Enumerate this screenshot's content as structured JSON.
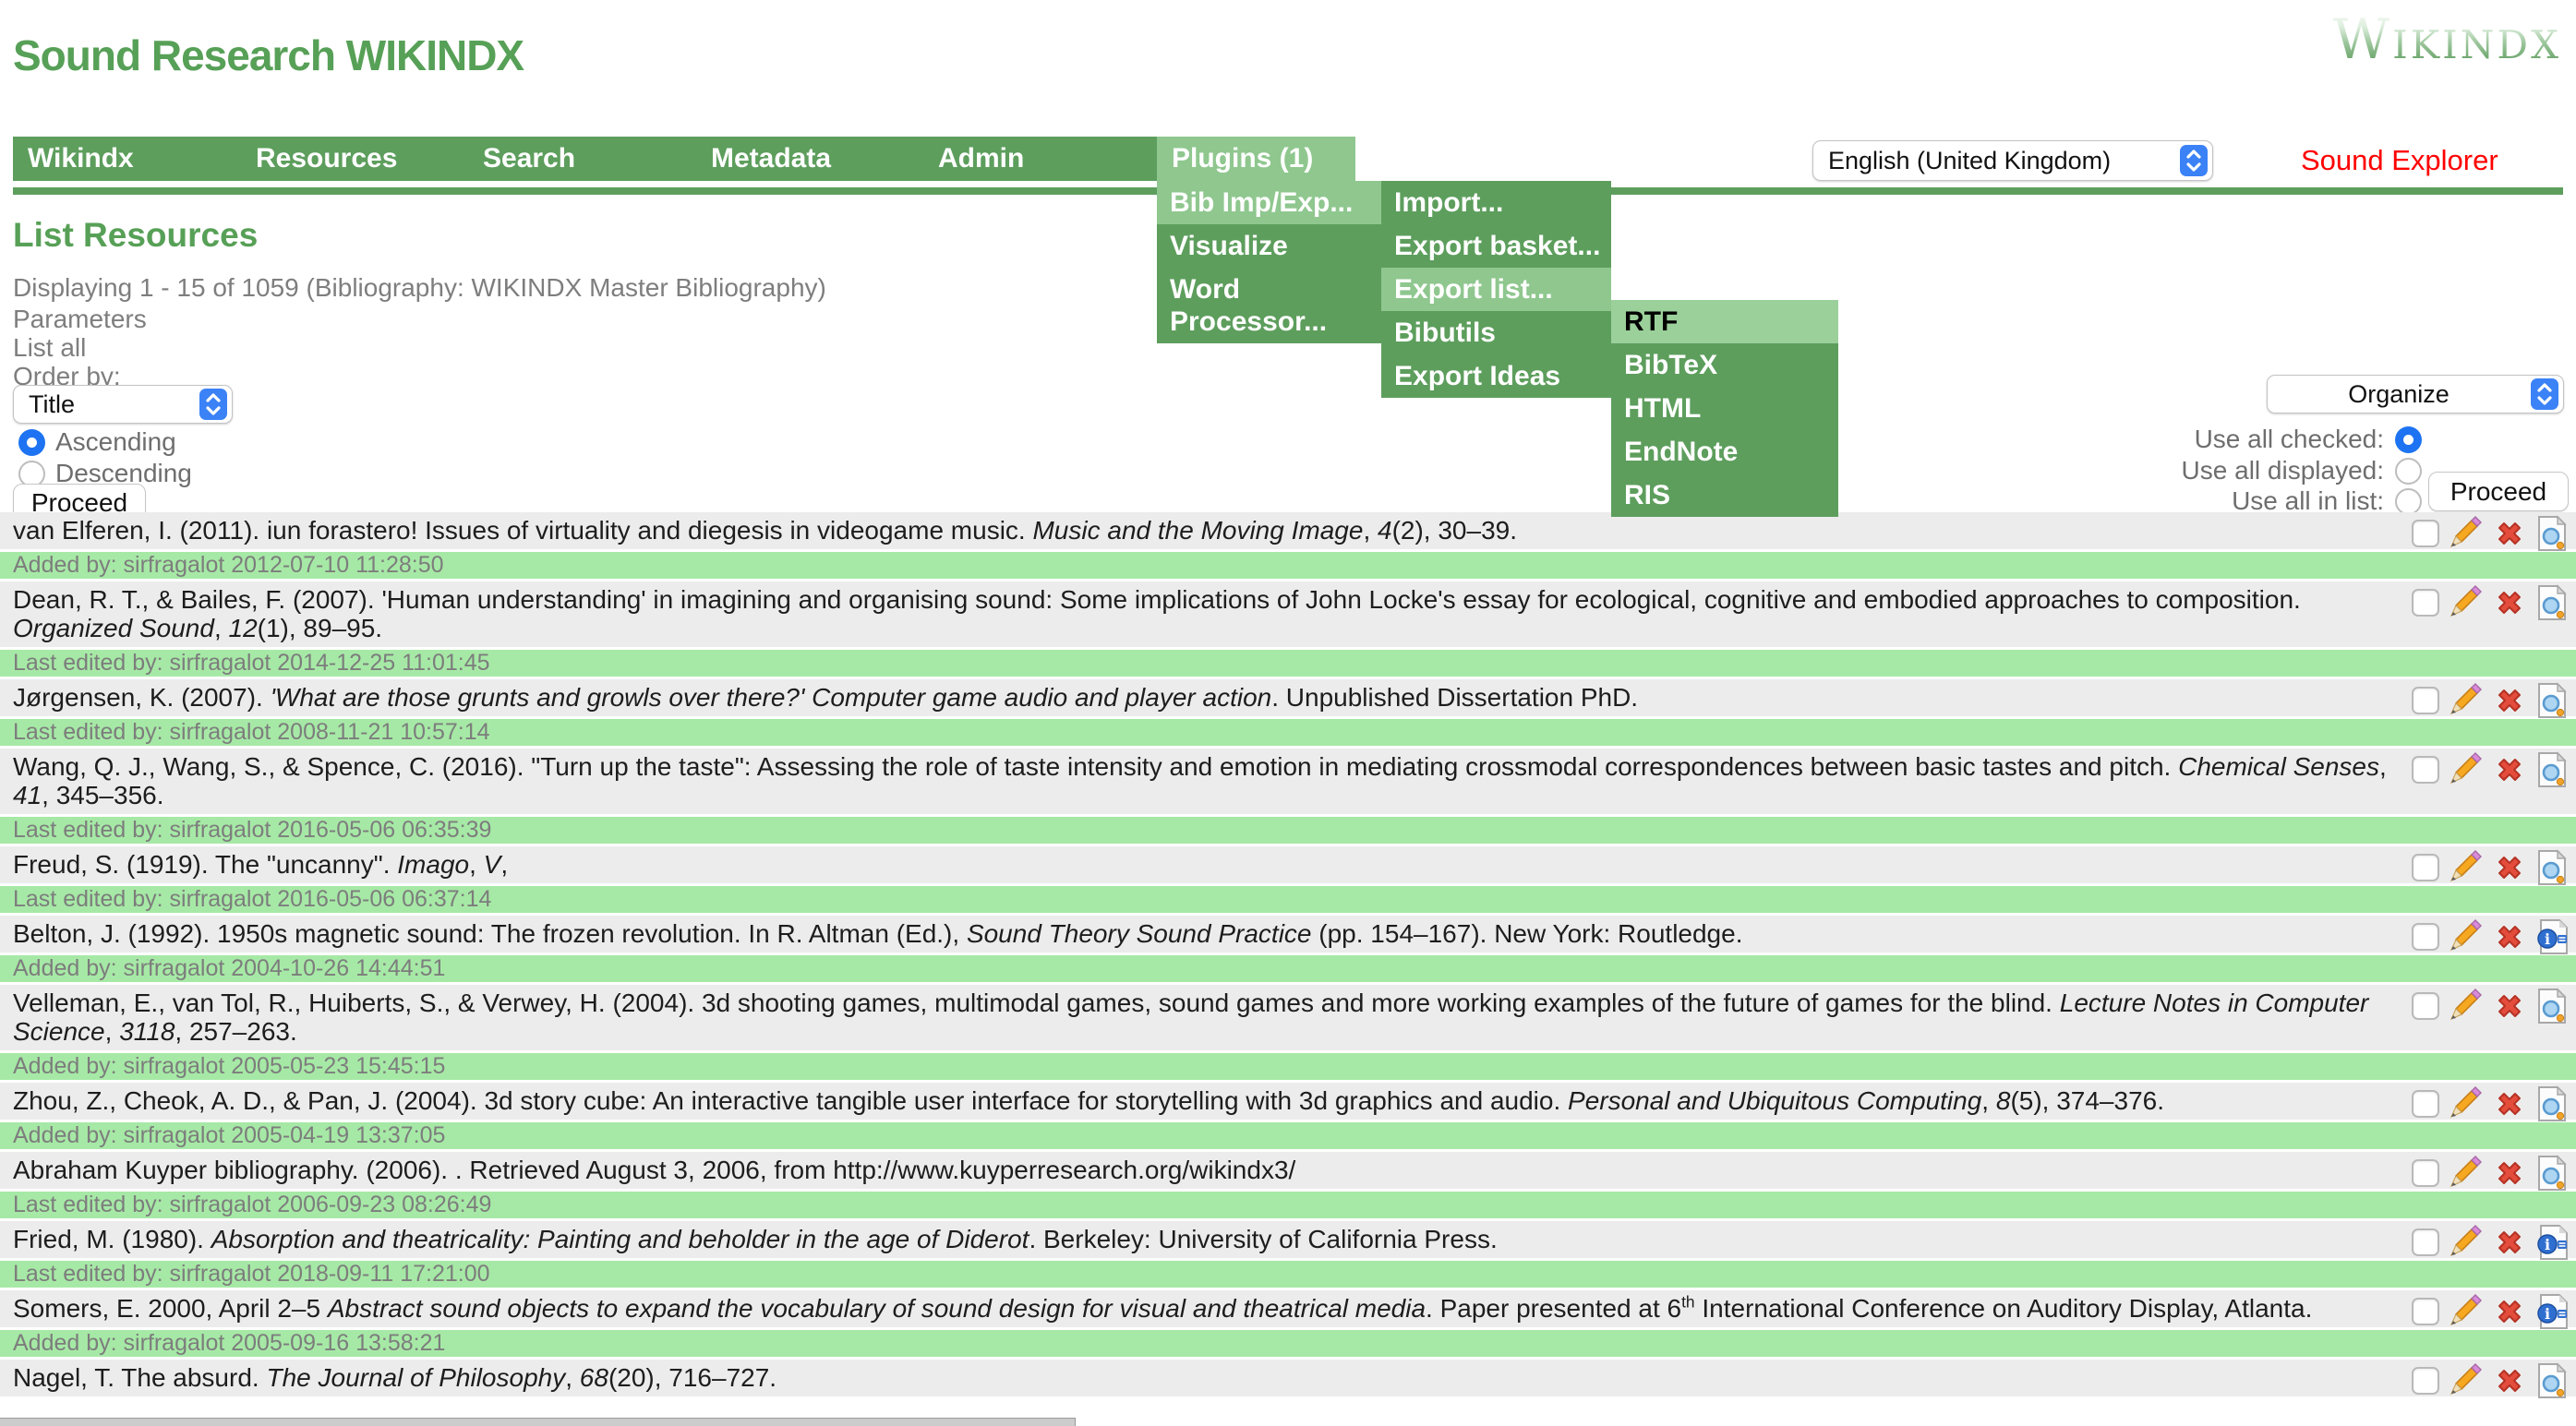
{
  "header": {
    "title": "Sound Research WIKINDX",
    "logo": "Wikindx",
    "language_select_value": "English (United Kingdom)",
    "explorer_label": "Sound Explorer",
    "accent_green": "#5d9e5d",
    "highlight_green": "#8fc78f",
    "bar_green": "#a6e9a6",
    "explorer_red": "#ff0000"
  },
  "nav": {
    "items": [
      {
        "label": "Wikindx",
        "active": false
      },
      {
        "label": "Resources",
        "active": false
      },
      {
        "label": "Search",
        "active": false
      },
      {
        "label": "Metadata",
        "active": false
      },
      {
        "label": "Admin",
        "active": false
      },
      {
        "label": "Plugins (1)",
        "active": true
      }
    ]
  },
  "menus": {
    "level1": [
      {
        "label": "Bib Imp/Exp...",
        "highlighted": true
      },
      {
        "label": "Visualize",
        "highlighted": false
      },
      {
        "label": "Word Processor...",
        "highlighted": false
      }
    ],
    "level2": [
      {
        "label": "Import...",
        "highlighted": false
      },
      {
        "label": "Export basket...",
        "highlighted": false
      },
      {
        "label": "Export list...",
        "highlighted": true
      },
      {
        "label": "Bibutils",
        "highlighted": false
      },
      {
        "label": "Export Ideas",
        "highlighted": false
      }
    ],
    "level3": [
      {
        "label": "RTF",
        "highlighted": true
      },
      {
        "label": "BibTeX",
        "highlighted": false
      },
      {
        "label": "HTML",
        "highlighted": false
      },
      {
        "label": "EndNote",
        "highlighted": false
      },
      {
        "label": "RIS",
        "highlighted": false
      }
    ]
  },
  "list_header": {
    "title": "List Resources",
    "displaying": "Displaying 1 - 15 of 1059 (Bibliography: WIKINDX Master Bibliography)",
    "parameters_label": "Parameters",
    "list_all_label": "List all",
    "order_by_label": "Order by:",
    "order_select_value": "Title",
    "ascending_label": "Ascending",
    "descending_label": "Descending",
    "ascending_checked": true,
    "proceed_label": "Proceed"
  },
  "organize": {
    "select_value": "Organize",
    "use_all_checked_label": "Use all checked:",
    "use_all_displayed_label": "Use all displayed:",
    "use_all_in_list_label": "Use all in list:",
    "checked_option": "use_all_checked",
    "proceed_label": "Proceed"
  },
  "rows": [
    {
      "segments": [
        {
          "t": "van Elferen, I. (2011). iun forastero! Issues of virtuality and diegesis in videogame music. "
        },
        {
          "t": "Music and the Moving Image",
          "i": true
        },
        {
          "t": ", "
        },
        {
          "t": "4",
          "i": true
        },
        {
          "t": "(2), 30–39."
        }
      ],
      "meta": "Added by: sirfragalot 2012-07-10 11:28:50",
      "view_icon": "magnifier"
    },
    {
      "segments": [
        {
          "t": "Dean, R. T., & Bailes, F. (2007). 'Human understanding' in imagining and organising sound: Some implications of John Locke's essay for ecological, cognitive and embodied approaches to composition. "
        },
        {
          "t": "Organized Sound",
          "i": true
        },
        {
          "t": ", "
        },
        {
          "t": "12",
          "i": true
        },
        {
          "t": "(1), 89–95."
        }
      ],
      "meta": "Last edited by: sirfragalot 2014-12-25 11:01:45",
      "view_icon": "magnifier"
    },
    {
      "segments": [
        {
          "t": "Jørgensen, K. (2007). "
        },
        {
          "t": "'What are those grunts and growls over there?' Computer game audio and player action",
          "i": true
        },
        {
          "t": ". Unpublished Dissertation PhD."
        }
      ],
      "meta": "Last edited by: sirfragalot 2008-11-21 10:57:14",
      "view_icon": "magnifier"
    },
    {
      "segments": [
        {
          "t": "Wang, Q. J., Wang, S., & Spence, C. (2016). \"Turn up the taste\": Assessing the role of taste intensity and emotion in mediating crossmodal correspondences between basic tastes and pitch. "
        },
        {
          "t": "Chemical Senses",
          "i": true
        },
        {
          "t": ", "
        },
        {
          "t": "41",
          "i": true
        },
        {
          "t": ", 345–356."
        }
      ],
      "meta": "Last edited by: sirfragalot 2016-05-06 06:35:39",
      "view_icon": "magnifier"
    },
    {
      "segments": [
        {
          "t": "Freud, S. (1919). The \"uncanny\". "
        },
        {
          "t": "Imago",
          "i": true
        },
        {
          "t": ", "
        },
        {
          "t": "V",
          "i": true
        },
        {
          "t": ","
        }
      ],
      "meta": "Last edited by: sirfragalot 2016-05-06 06:37:14",
      "view_icon": "magnifier"
    },
    {
      "segments": [
        {
          "t": "Belton, J. (1992). 1950s magnetic sound: The frozen revolution. In R. Altman (Ed.), "
        },
        {
          "t": "Sound Theory Sound Practice",
          "i": true
        },
        {
          "t": " (pp. 154–167). New York: Routledge."
        }
      ],
      "meta": "Added by: sirfragalot 2004-10-26 14:44:51",
      "view_icon": "info"
    },
    {
      "segments": [
        {
          "t": "Velleman, E., van Tol, R., Huiberts, S., & Verwey, H. (2004). 3d shooting games, multimodal games, sound games and more working examples of the future of games for the blind. "
        },
        {
          "t": "Lecture Notes in Computer Science",
          "i": true
        },
        {
          "t": ", "
        },
        {
          "t": "3118",
          "i": true
        },
        {
          "t": ", 257–263."
        }
      ],
      "meta": "Added by: sirfragalot 2005-05-23 15:45:15",
      "view_icon": "magnifier"
    },
    {
      "segments": [
        {
          "t": "Zhou, Z., Cheok, A. D., & Pan, J. (2004). 3d story cube: An interactive tangible user interface for storytelling with 3d graphics and audio. "
        },
        {
          "t": "Personal and Ubiquitous Computing",
          "i": true
        },
        {
          "t": ", "
        },
        {
          "t": "8",
          "i": true
        },
        {
          "t": "(5), 374–376."
        }
      ],
      "meta": "Added by: sirfragalot 2005-04-19 13:37:05",
      "view_icon": "magnifier"
    },
    {
      "segments": [
        {
          "t": "Abraham Kuyper bibliography. (2006). . Retrieved August 3, 2006, from http://www.kuyperresearch.org/wikindx3/"
        }
      ],
      "meta": "Last edited by: sirfragalot 2006-09-23 08:26:49",
      "view_icon": "magnifier"
    },
    {
      "segments": [
        {
          "t": "Fried, M. (1980). "
        },
        {
          "t": "Absorption and theatricality: Painting and beholder in the age of Diderot",
          "i": true
        },
        {
          "t": ". Berkeley: University of California Press."
        }
      ],
      "meta": "Last edited by: sirfragalot 2018-09-11 17:21:00",
      "view_icon": "info"
    },
    {
      "segments": [
        {
          "t": "Somers, E. 2000, April 2–5 "
        },
        {
          "t": "Abstract sound objects to expand the vocabulary of sound design for visual and theatrical media",
          "i": true
        },
        {
          "t": ". Paper presented at 6"
        },
        {
          "t": "th",
          "sup": true
        },
        {
          "t": " International Conference on Auditory Display, Atlanta."
        }
      ],
      "meta": "Added by: sirfragalot 2005-09-16 13:58:21",
      "view_icon": "info"
    },
    {
      "segments": [
        {
          "t": "Nagel, T. The absurd. "
        },
        {
          "t": "The Journal of Philosophy",
          "i": true
        },
        {
          "t": ", "
        },
        {
          "t": "68",
          "i": true
        },
        {
          "t": "(20), 716–727."
        }
      ],
      "meta": null,
      "view_icon": "magnifier"
    }
  ]
}
